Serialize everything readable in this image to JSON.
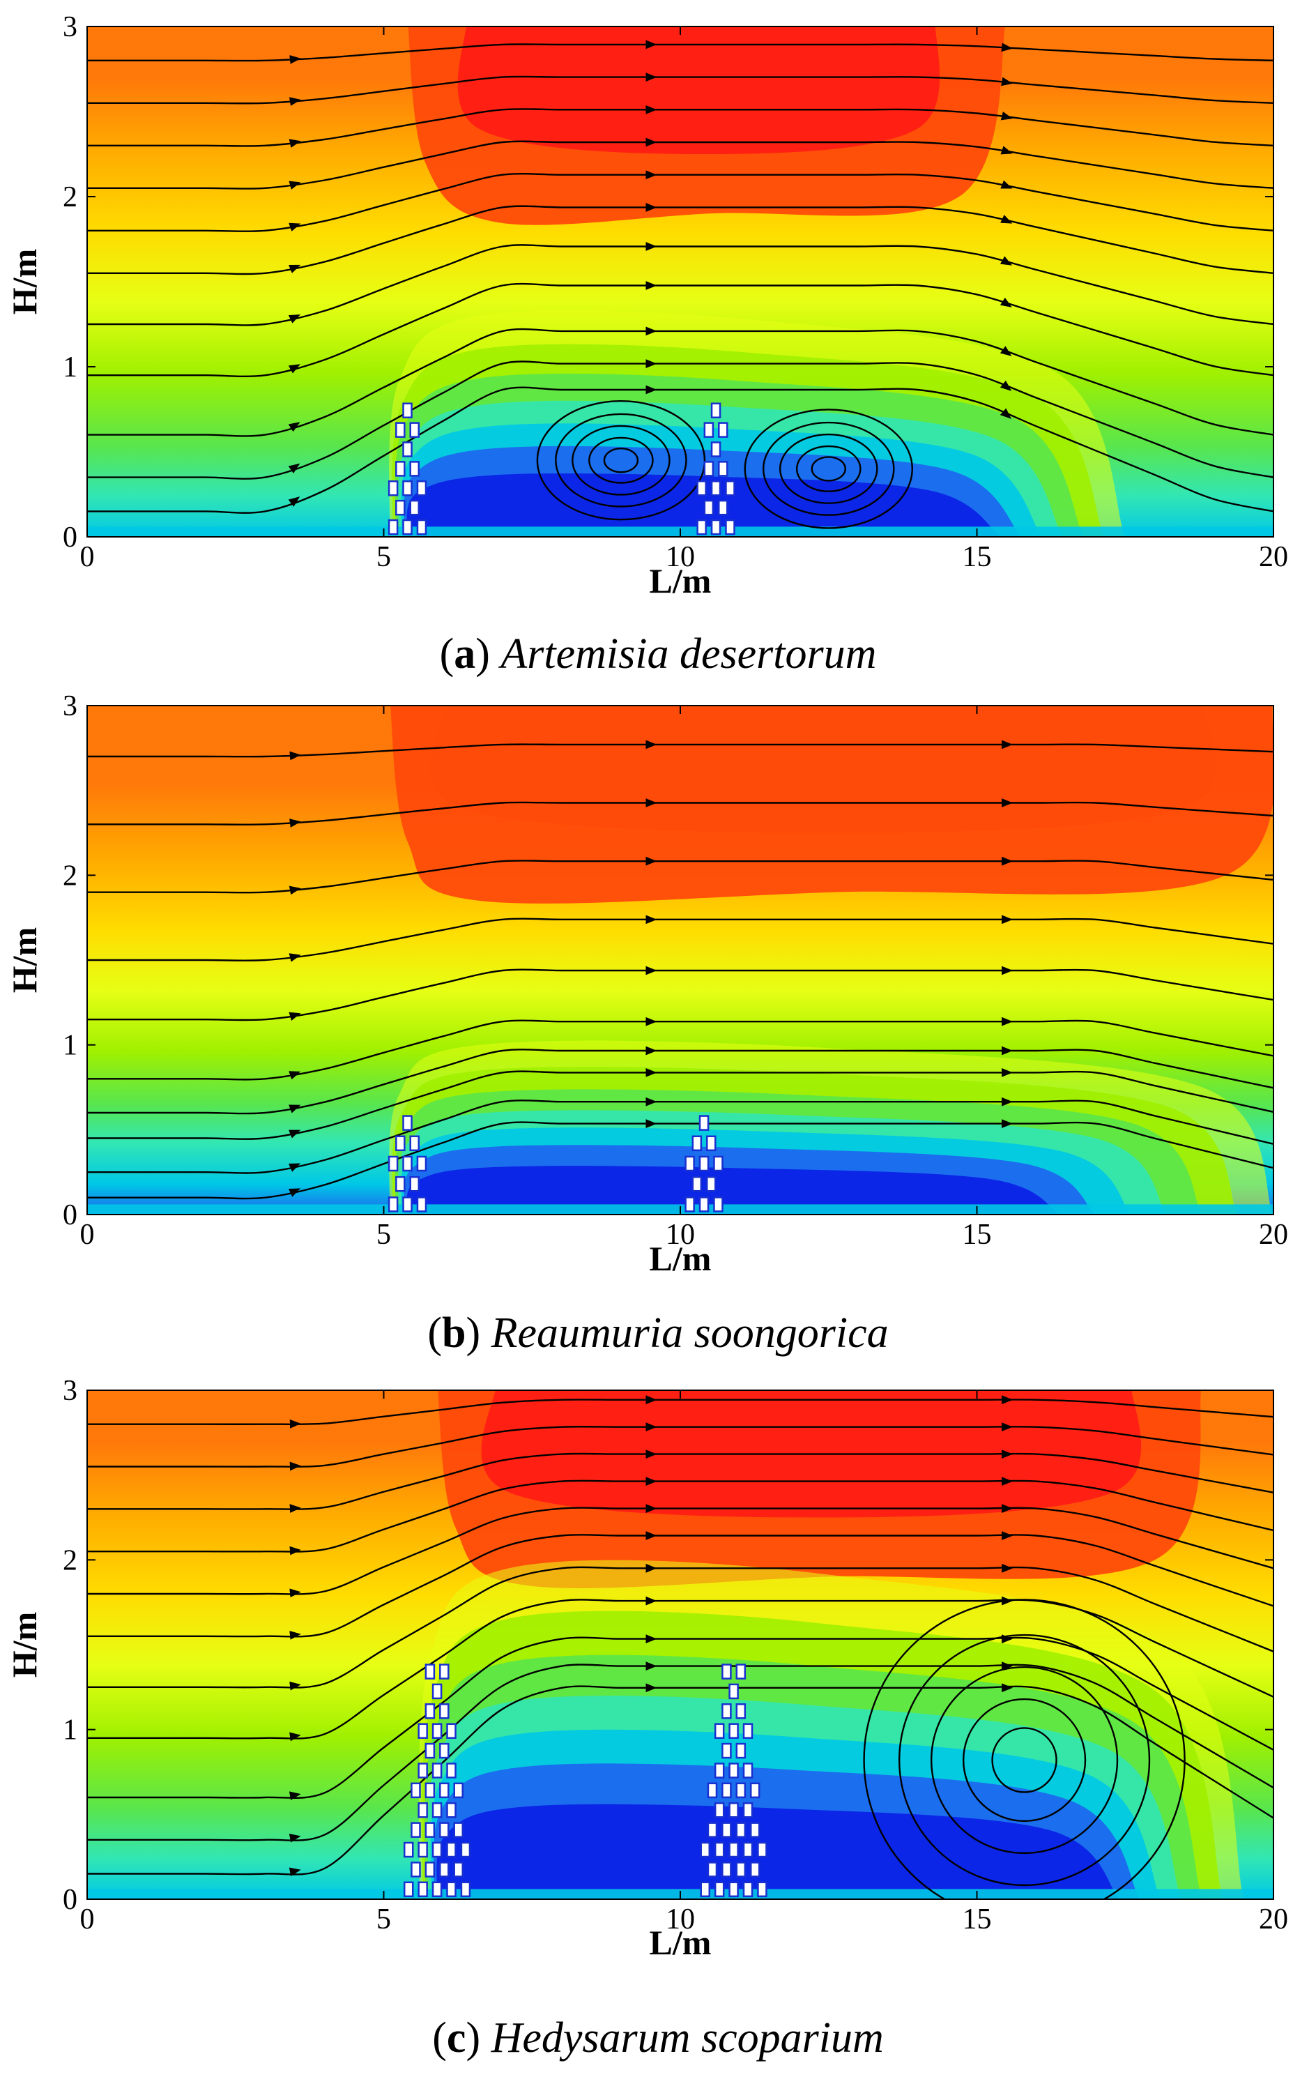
{
  "chart_data": [
    {
      "type": "heatmap",
      "panel_letter": "a",
      "species": "Artemisia desertorum",
      "xlabel": "L/m",
      "ylabel": "H/m",
      "xlim": [
        0,
        20
      ],
      "ylim": [
        0,
        3
      ],
      "x_ticks": [
        0,
        5,
        10,
        15,
        20
      ],
      "y_ticks": [
        0,
        1,
        2,
        3
      ],
      "shrub_positions_x": [
        5.4,
        10.6
      ],
      "shrub_height": 0.8,
      "vortex_centers": [
        {
          "x": 9.0,
          "y": 0.45
        },
        {
          "x": 12.5,
          "y": 0.4
        }
      ],
      "reattachment_x": 17.5
    },
    {
      "type": "heatmap",
      "panel_letter": "b",
      "species": "Reaumuria soongorica",
      "xlabel": "L/m",
      "ylabel": "H/m",
      "xlim": [
        0,
        20
      ],
      "ylim": [
        0,
        3
      ],
      "x_ticks": [
        0,
        5,
        10,
        15,
        20
      ],
      "y_ticks": [
        0,
        1,
        2,
        3
      ],
      "shrub_positions_x": [
        5.4,
        10.4
      ],
      "shrub_height": 0.6,
      "vortex_centers": [],
      "reattachment_x": 20
    },
    {
      "type": "heatmap",
      "panel_letter": "c",
      "species": "Hedysarum scoparium",
      "xlabel": "L/m",
      "ylabel": "H/m",
      "xlim": [
        0,
        20
      ],
      "ylim": [
        0,
        3
      ],
      "x_ticks": [
        0,
        5,
        10,
        15,
        20
      ],
      "y_ticks": [
        0,
        1,
        2,
        3
      ],
      "shrub_positions_x": [
        5.9,
        10.9
      ],
      "shrub_height": 1.4,
      "vortex_centers": [
        {
          "x": 15.8,
          "y": 0.82
        }
      ],
      "reattachment_x": 19.5
    }
  ],
  "colors": {
    "scale": [
      "#0a1ee6",
      "#1e64f0",
      "#00c8e6",
      "#32e6b4",
      "#5ae64b",
      "#a0f000",
      "#e6ff14",
      "#ffdc00",
      "#ffaa00",
      "#ff780a",
      "#ff4b0a",
      "#ff1e14"
    ],
    "streamline": "#000000"
  }
}
